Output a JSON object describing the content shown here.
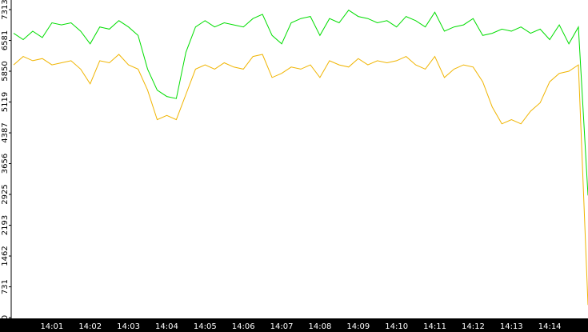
{
  "chart_data": {
    "type": "line",
    "categories": [
      "",
      null,
      null,
      null,
      "14:01",
      null,
      null,
      null,
      "14:02",
      null,
      null,
      null,
      "14:03",
      null,
      null,
      null,
      "14:04",
      null,
      null,
      null,
      "14:05",
      null,
      null,
      null,
      "14:06",
      null,
      null,
      null,
      "14:07",
      null,
      null,
      null,
      "14:08",
      null,
      null,
      null,
      "14:09",
      null,
      null,
      null,
      "14:10",
      null,
      null,
      null,
      "14:11",
      null,
      null,
      null,
      "14:12",
      null,
      null,
      null,
      "14:13",
      null,
      null,
      null,
      "14:14",
      null,
      null,
      null,
      null
    ],
    "series": [
      {
        "color": "#00dd00",
        "values": [
          6750,
          6600,
          6800,
          6650,
          7000,
          6950,
          7000,
          6800,
          6500,
          6900,
          6850,
          7050,
          6900,
          6700,
          5900,
          5400,
          5250,
          5200,
          6300,
          6900,
          7050,
          6900,
          7000,
          6950,
          6900,
          7100,
          7200,
          6700,
          6500,
          7000,
          7100,
          7150,
          6700,
          7100,
          7000,
          7300,
          7150,
          7100,
          7000,
          7050,
          6900,
          7150,
          7050,
          6900,
          7250,
          6800,
          6900,
          6950,
          7100,
          6700,
          6750,
          6850,
          6800,
          6900,
          6750,
          6850,
          6600,
          6950,
          6500,
          6900,
          2900
        ]
      },
      {
        "color": "#f0b400",
        "values": [
          6000,
          6200,
          6100,
          6150,
          6000,
          6050,
          6100,
          5900,
          5550,
          6100,
          6050,
          6250,
          6000,
          5900,
          5400,
          4700,
          4800,
          4700,
          5300,
          5900,
          6000,
          5900,
          6050,
          5950,
          5900,
          6200,
          6250,
          5700,
          5800,
          5950,
          5900,
          6000,
          5700,
          6100,
          6000,
          5950,
          6150,
          6000,
          6100,
          6050,
          6100,
          6200,
          6000,
          5900,
          6200,
          5700,
          5900,
          6000,
          5950,
          5600,
          5000,
          4600,
          4700,
          4600,
          4900,
          5100,
          5600,
          5800,
          5850,
          6000,
          300
        ]
      }
    ],
    "ylim": [
      0,
      7313
    ],
    "yticks": [
      0,
      731,
      1462,
      2193,
      2925,
      3656,
      4387,
      5119,
      5850,
      6581,
      7313
    ]
  }
}
